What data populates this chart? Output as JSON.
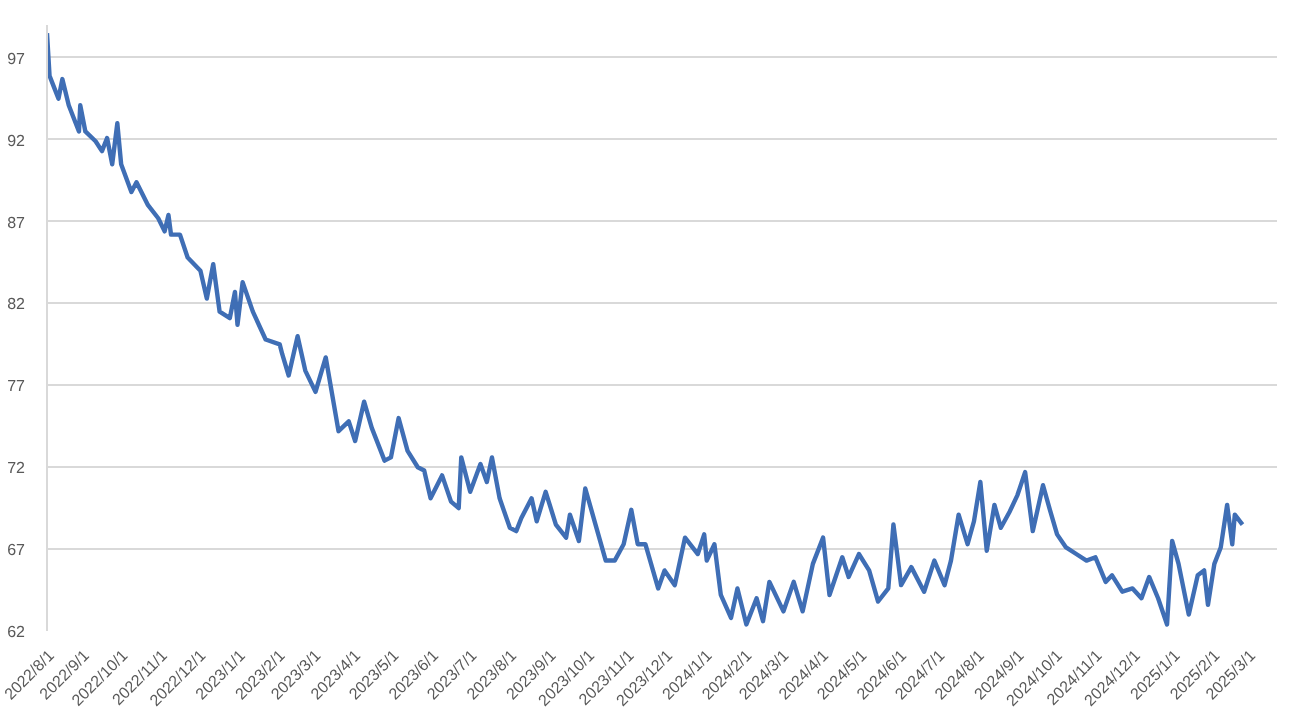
{
  "chart_data": {
    "type": "line",
    "xlim": [
      "2022-08-01",
      "2025-03-20"
    ],
    "ylim": [
      62,
      99
    ],
    "yticks": [
      62,
      67,
      72,
      77,
      82,
      87,
      92,
      97
    ],
    "xticks": [
      {
        "value": "2022-08-01",
        "label": "2022/8/1"
      },
      {
        "value": "2022-09-01",
        "label": "2022/9/1"
      },
      {
        "value": "2022-10-01",
        "label": "2022/10/1"
      },
      {
        "value": "2022-11-01",
        "label": "2022/11/1"
      },
      {
        "value": "2022-12-01",
        "label": "2022/12/1"
      },
      {
        "value": "2023-01-01",
        "label": "2023/1/1"
      },
      {
        "value": "2023-02-01",
        "label": "2023/2/1"
      },
      {
        "value": "2023-03-01",
        "label": "2023/3/1"
      },
      {
        "value": "2023-04-01",
        "label": "2023/4/1"
      },
      {
        "value": "2023-05-01",
        "label": "2023/5/1"
      },
      {
        "value": "2023-06-01",
        "label": "2023/6/1"
      },
      {
        "value": "2023-07-01",
        "label": "2023/7/1"
      },
      {
        "value": "2023-08-01",
        "label": "2023/8/1"
      },
      {
        "value": "2023-09-01",
        "label": "2023/9/1"
      },
      {
        "value": "2023-10-01",
        "label": "2023/10/1"
      },
      {
        "value": "2023-11-01",
        "label": "2023/11/1"
      },
      {
        "value": "2023-12-01",
        "label": "2023/12/1"
      },
      {
        "value": "2024-01-01",
        "label": "2024/1/1"
      },
      {
        "value": "2024-02-01",
        "label": "2024/2/1"
      },
      {
        "value": "2024-03-01",
        "label": "2024/3/1"
      },
      {
        "value": "2024-04-01",
        "label": "2024/4/1"
      },
      {
        "value": "2024-05-01",
        "label": "2024/5/1"
      },
      {
        "value": "2024-06-01",
        "label": "2024/6/1"
      },
      {
        "value": "2024-07-01",
        "label": "2024/7/1"
      },
      {
        "value": "2024-08-01",
        "label": "2024/8/1"
      },
      {
        "value": "2024-09-01",
        "label": "2024/9/1"
      },
      {
        "value": "2024-10-01",
        "label": "2024/10/1"
      },
      {
        "value": "2024-11-01",
        "label": "2024/11/1"
      },
      {
        "value": "2024-12-01",
        "label": "2024/12/1"
      },
      {
        "value": "2025-01-01",
        "label": "2025/1/1"
      },
      {
        "value": "2025-02-01",
        "label": "2025/2/1"
      },
      {
        "value": "2025-03-01",
        "label": "2025/3/1"
      }
    ],
    "grid": "y",
    "line_style": "solid",
    "series": [
      {
        "color": "#3f6eb5",
        "x": [
          "2022-08-01",
          "2022-08-03",
          "2022-08-06",
          "2022-08-10",
          "2022-08-13",
          "2022-08-18",
          "2022-08-26",
          "2022-08-27",
          "2022-08-31",
          "2022-09-08",
          "2022-09-13",
          "2022-09-17",
          "2022-09-21",
          "2022-09-25",
          "2022-09-28",
          "2022-10-06",
          "2022-10-10",
          "2022-10-19",
          "2022-10-27",
          "2022-11-01",
          "2022-11-04",
          "2022-11-06",
          "2022-11-13",
          "2022-11-19",
          "2022-11-29",
          "2022-12-04",
          "2022-12-09",
          "2022-12-14",
          "2022-12-22",
          "2022-12-26",
          "2022-12-28",
          "2023-01-01",
          "2023-01-09",
          "2023-01-19",
          "2023-01-30",
          "2023-02-01",
          "2023-02-06",
          "2023-02-13",
          "2023-02-19",
          "2023-02-27",
          "2023-03-07",
          "2023-03-17",
          "2023-03-25",
          "2023-03-30",
          "2023-04-06",
          "2023-04-12",
          "2023-04-22",
          "2023-04-27",
          "2023-05-03",
          "2023-05-10",
          "2023-05-18",
          "2023-05-23",
          "2023-05-28",
          "2023-06-06",
          "2023-06-13",
          "2023-06-19",
          "2023-06-21",
          "2023-06-28",
          "2023-07-06",
          "2023-07-11",
          "2023-07-15",
          "2023-07-21",
          "2023-07-29",
          "2023-08-03",
          "2023-08-07",
          "2023-08-15",
          "2023-08-19",
          "2023-08-26",
          "2023-09-03",
          "2023-09-11",
          "2023-09-14",
          "2023-09-21",
          "2023-09-26",
          "2023-10-04",
          "2023-10-12",
          "2023-10-19",
          "2023-10-26",
          "2023-11-01",
          "2023-11-06",
          "2023-11-12",
          "2023-11-22",
          "2023-11-27",
          "2023-12-05",
          "2023-12-13",
          "2023-12-23",
          "2023-12-28",
          "2023-12-30",
          "2024-01-05",
          "2024-01-10",
          "2024-01-18",
          "2024-01-23",
          "2024-01-30",
          "2024-02-07",
          "2024-02-12",
          "2024-02-17",
          "2024-02-28",
          "2024-03-07",
          "2024-03-14",
          "2024-03-22",
          "2024-03-30",
          "2024-04-04",
          "2024-04-14",
          "2024-04-19",
          "2024-04-27",
          "2024-05-05",
          "2024-05-12",
          "2024-05-20",
          "2024-05-24",
          "2024-05-30",
          "2024-06-07",
          "2024-06-17",
          "2024-06-25",
          "2024-07-03",
          "2024-07-08",
          "2024-07-14",
          "2024-07-21",
          "2024-07-26",
          "2024-07-31",
          "2024-08-05",
          "2024-08-11",
          "2024-08-16",
          "2024-08-23",
          "2024-08-29",
          "2024-09-04",
          "2024-09-10",
          "2024-09-18",
          "2024-09-23",
          "2024-09-29",
          "2024-10-06",
          "2024-10-14",
          "2024-10-22",
          "2024-10-29",
          "2024-11-06",
          "2024-11-11",
          "2024-11-19",
          "2024-11-27",
          "2024-12-04",
          "2024-12-10",
          "2024-12-17",
          "2024-12-24",
          "2024-12-28",
          "2025-01-02",
          "2025-01-10",
          "2025-01-17",
          "2025-01-22",
          "2025-01-25",
          "2025-01-30",
          "2025-02-04",
          "2025-02-09",
          "2025-02-13",
          "2025-02-15",
          "2025-02-21"
        ],
        "values": [
          98.5,
          95.9,
          95.3,
          94.5,
          95.7,
          94.1,
          92.5,
          94.1,
          92.5,
          91.9,
          91.3,
          92.1,
          90.5,
          93.0,
          90.5,
          88.8,
          89.4,
          88.0,
          87.2,
          86.4,
          87.4,
          86.2,
          86.2,
          84.8,
          84.0,
          82.3,
          84.4,
          81.5,
          81.1,
          82.7,
          80.7,
          83.3,
          81.5,
          79.8,
          79.5,
          78.9,
          77.6,
          80.0,
          77.9,
          76.6,
          78.7,
          74.2,
          74.8,
          73.6,
          76.0,
          74.4,
          72.4,
          72.6,
          75.0,
          73.0,
          72.0,
          71.8,
          70.1,
          71.5,
          69.9,
          69.5,
          72.6,
          70.5,
          72.2,
          71.1,
          72.6,
          70.1,
          68.3,
          68.1,
          68.9,
          70.1,
          68.7,
          70.5,
          68.5,
          67.7,
          69.1,
          67.5,
          70.7,
          68.5,
          66.3,
          66.3,
          67.3,
          69.4,
          67.3,
          67.3,
          64.6,
          65.7,
          64.8,
          67.7,
          66.7,
          67.9,
          66.3,
          67.3,
          64.2,
          62.8,
          64.6,
          62.4,
          64.0,
          62.6,
          65.0,
          63.2,
          65.0,
          63.2,
          66.1,
          67.7,
          64.2,
          66.5,
          65.3,
          66.7,
          65.7,
          63.8,
          64.6,
          68.5,
          64.8,
          65.9,
          64.4,
          66.3,
          64.8,
          66.3,
          69.1,
          67.3,
          68.7,
          71.1,
          66.9,
          69.7,
          68.3,
          69.3,
          70.3,
          71.7,
          68.1,
          70.9,
          69.5,
          67.9,
          67.1,
          66.7,
          66.3,
          66.5,
          65.0,
          65.4,
          64.4,
          64.6,
          64.0,
          65.3,
          64.0,
          62.4,
          67.5,
          66.1,
          63.0,
          65.4,
          65.7,
          63.6,
          66.1,
          67.1,
          69.7,
          67.3,
          69.1,
          68.5
        ]
      }
    ]
  }
}
